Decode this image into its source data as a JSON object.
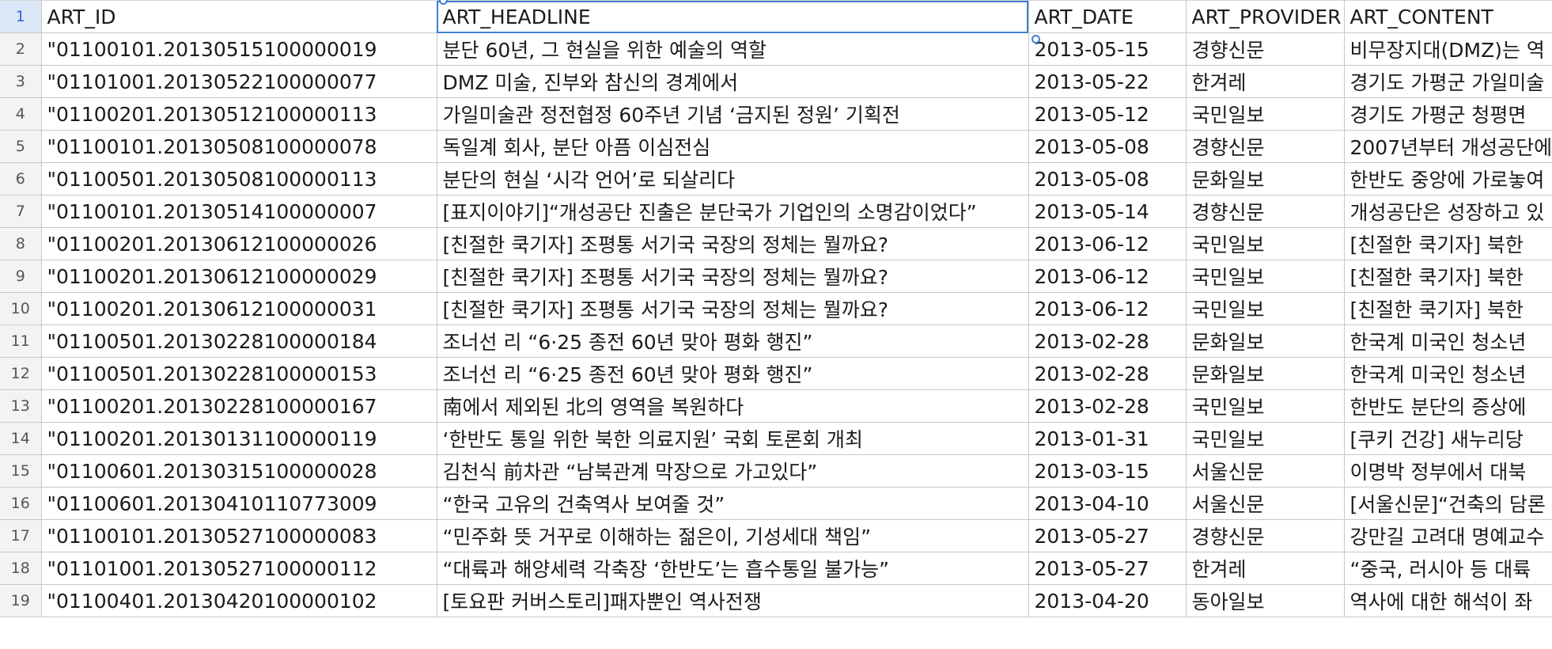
{
  "sheet": {
    "columns": [
      "ART_ID",
      "ART_HEADLINE",
      "ART_DATE",
      "ART_PROVIDER",
      "ART_CONTENT"
    ],
    "rows": [
      {
        "n": "2",
        "id": "\"01100101.20130515100000019",
        "headline": "분단 60년, 그 현실을 위한 예술의 역할",
        "date": "2013-05-15",
        "provider": "경향신문",
        "content": "비무장지대(DMZ)는 역"
      },
      {
        "n": "3",
        "id": "\"01101001.20130522100000077",
        "headline": "DMZ 미술, 진부와 참신의 경계에서",
        "date": "2013-05-22",
        "provider": "한겨레",
        "content": "경기도 가평군 가일미술"
      },
      {
        "n": "4",
        "id": "\"01100201.20130512100000113",
        "headline": "가일미술관 정전협정 60주년 기념 ‘금지된 정원’ 기획전",
        "date": "2013-05-12",
        "provider": "국민일보",
        "content": "경기도 가평군 청평면"
      },
      {
        "n": "5",
        "id": "\"01100101.20130508100000078",
        "headline": "독일계 회사, 분단 아픔 이심전심",
        "date": "2013-05-08",
        "provider": "경향신문",
        "content": "2007년부터 개성공단에"
      },
      {
        "n": "6",
        "id": "\"01100501.20130508100000113",
        "headline": "분단의 현실 ‘시각 언어’로 되살리다",
        "date": "2013-05-08",
        "provider": "문화일보",
        "content": "한반도 중앙에 가로놓여"
      },
      {
        "n": "7",
        "id": "\"01100101.20130514100000007",
        "headline": "[표지이야기]“개성공단 진출은 분단국가 기업인의 소명감이었다”",
        "date": "2013-05-14",
        "provider": "경향신문",
        "content": "개성공단은 성장하고 있"
      },
      {
        "n": "8",
        "id": "\"01100201.20130612100000026",
        "headline": "[친절한 쿡기자] 조평통 서기국 국장의 정체는 뭘까요?",
        "date": "2013-06-12",
        "provider": "국민일보",
        "content": "[친절한 쿡기자] 북한"
      },
      {
        "n": "9",
        "id": "\"01100201.20130612100000029",
        "headline": "[친절한 쿡기자] 조평통 서기국 국장의 정체는 뭘까요?",
        "date": "2013-06-12",
        "provider": "국민일보",
        "content": "[친절한 쿡기자] 북한"
      },
      {
        "n": "10",
        "id": "\"01100201.20130612100000031",
        "headline": "[친절한 쿡기자] 조평통 서기국 국장의 정체는 뭘까요?",
        "date": "2013-06-12",
        "provider": "국민일보",
        "content": "[친절한 쿡기자] 북한"
      },
      {
        "n": "11",
        "id": "\"01100501.20130228100000184",
        "headline": "조너선 리 “6·25 종전 60년 맞아 평화 행진”",
        "date": "2013-02-28",
        "provider": "문화일보",
        "content": "한국계 미국인 청소년"
      },
      {
        "n": "12",
        "id": "\"01100501.20130228100000153",
        "headline": "조너선 리 “6·25 종전 60년 맞아 평화 행진”",
        "date": "2013-02-28",
        "provider": "문화일보",
        "content": "한국계 미국인 청소년"
      },
      {
        "n": "13",
        "id": "\"01100201.20130228100000167",
        "headline": "南에서 제외된 北의 영역을 복원하다",
        "date": "2013-02-28",
        "provider": "국민일보",
        "content": "한반도 분단의 증상에"
      },
      {
        "n": "14",
        "id": "\"01100201.20130131100000119",
        "headline": "‘한반도 통일 위한 북한 의료지원’ 국회 토론회 개최",
        "date": "2013-01-31",
        "provider": "국민일보",
        "content": "[쿠키 건강] 새누리당"
      },
      {
        "n": "15",
        "id": "\"01100601.20130315100000028",
        "headline": "김천식 前차관 “남북관계 막장으로 가고있다”",
        "date": "2013-03-15",
        "provider": "서울신문",
        "content": "이명박 정부에서 대북"
      },
      {
        "n": "16",
        "id": "\"01100601.20130410110773009",
        "headline": "“한국 고유의 건축역사 보여줄 것”",
        "date": "2013-04-10",
        "provider": "서울신문",
        "content": "[서울신문]“건축의 담론"
      },
      {
        "n": "17",
        "id": "\"01100101.20130527100000083",
        "headline": "“민주화 뜻 거꾸로 이해하는 젊은이, 기성세대 책임”",
        "date": "2013-05-27",
        "provider": "경향신문",
        "content": "강만길 고려대 명예교수"
      },
      {
        "n": "18",
        "id": "\"01101001.20130527100000112",
        "headline": "“대륙과 해양세력 각축장 ‘한반도’는 흡수통일 불가능”",
        "date": "2013-05-27",
        "provider": "한겨레",
        "content": "“중국, 러시아 등 대륙"
      },
      {
        "n": "19",
        "id": "\"01100401.20130420100000102",
        "headline": "[토요판 커버스토리]패자뿐인 역사전쟁",
        "date": "2013-04-20",
        "provider": "동아일보",
        "content": "역사에 대한 해석이 좌"
      }
    ]
  }
}
